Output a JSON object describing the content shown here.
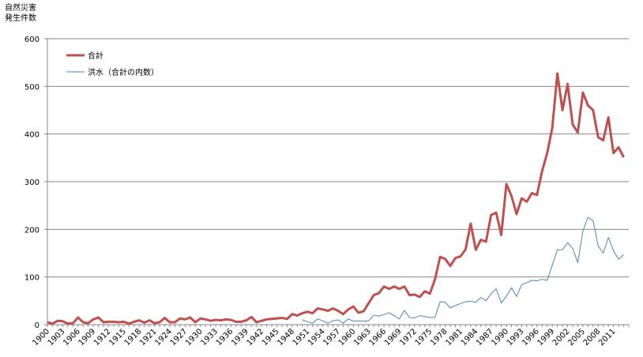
{
  "chart_data": {
    "type": "line",
    "title": "",
    "ylabel": [
      "自然災害",
      "発生件数"
    ],
    "xlabel": "",
    "ylim": [
      0,
      600
    ],
    "yticks": [
      0,
      100,
      200,
      300,
      400,
      500,
      600
    ],
    "xticks": [
      1900,
      1903,
      1906,
      1909,
      1912,
      1915,
      1918,
      1921,
      1924,
      1927,
      1930,
      1933,
      1936,
      1939,
      1942,
      1945,
      1948,
      1951,
      1954,
      1957,
      1960,
      1963,
      1966,
      1969,
      1972,
      1975,
      1978,
      1981,
      1984,
      1987,
      1990,
      1993,
      1996,
      1999,
      2002,
      2005,
      2008,
      2011
    ],
    "grid": "horizontal",
    "legend_position": "top-left",
    "series": [
      {
        "name": "合計",
        "color": "#c0504d",
        "x": [
          1900,
          1901,
          1902,
          1903,
          1904,
          1905,
          1906,
          1907,
          1908,
          1909,
          1910,
          1911,
          1912,
          1913,
          1914,
          1915,
          1916,
          1917,
          1918,
          1919,
          1920,
          1921,
          1922,
          1923,
          1924,
          1925,
          1926,
          1927,
          1928,
          1929,
          1930,
          1931,
          1932,
          1933,
          1934,
          1935,
          1936,
          1937,
          1938,
          1939,
          1940,
          1941,
          1942,
          1943,
          1944,
          1945,
          1946,
          1947,
          1948,
          1949,
          1950,
          1951,
          1952,
          1953,
          1954,
          1955,
          1956,
          1957,
          1958,
          1959,
          1960,
          1961,
          1962,
          1963,
          1964,
          1965,
          1966,
          1967,
          1968,
          1969,
          1970,
          1971,
          1972,
          1973,
          1974,
          1975,
          1976,
          1977,
          1978,
          1979,
          1980,
          1981,
          1982,
          1983,
          1984,
          1985,
          1986,
          1987,
          1988,
          1989,
          1990,
          1991,
          1992,
          1993,
          1994,
          1995,
          1996,
          1997,
          1998,
          1999,
          2000,
          2001,
          2002,
          2003,
          2004,
          2005,
          2006,
          2007,
          2008,
          2009,
          2010,
          2011,
          2012,
          2013
        ],
        "values": [
          5,
          2,
          8,
          7,
          2,
          3,
          15,
          5,
          3,
          11,
          15,
          5,
          6,
          6,
          5,
          6,
          2,
          6,
          9,
          4,
          9,
          3,
          5,
          14,
          5,
          5,
          13,
          11,
          15,
          5,
          13,
          11,
          8,
          10,
          9,
          11,
          10,
          6,
          6,
          9,
          16,
          5,
          8,
          11,
          12,
          13,
          14,
          12,
          22,
          19,
          24,
          27,
          24,
          34,
          32,
          29,
          34,
          29,
          22,
          32,
          38,
          25,
          28,
          45,
          62,
          66,
          80,
          75,
          80,
          75,
          80,
          62,
          63,
          58,
          70,
          65,
          95,
          142,
          138,
          123,
          140,
          143,
          158,
          212,
          157,
          178,
          174,
          230,
          235,
          188,
          295,
          270,
          232,
          265,
          258,
          276,
          272,
          322,
          360,
          413,
          527,
          450,
          505,
          420,
          403,
          487,
          460,
          450,
          393,
          387,
          435,
          360,
          372,
          351
        ]
      },
      {
        "name": "洪水（合計の内数）",
        "color": "#4f81bd",
        "x": [
          1950,
          1951,
          1952,
          1953,
          1954,
          1955,
          1956,
          1957,
          1958,
          1959,
          1960,
          1961,
          1962,
          1963,
          1964,
          1965,
          1966,
          1967,
          1968,
          1969,
          1970,
          1971,
          1972,
          1973,
          1974,
          1975,
          1976,
          1977,
          1978,
          1979,
          1980,
          1981,
          1982,
          1983,
          1984,
          1985,
          1986,
          1987,
          1988,
          1989,
          1990,
          1991,
          1992,
          1993,
          1994,
          1995,
          1996,
          1997,
          1998,
          1999,
          2000,
          2001,
          2002,
          2003,
          2004,
          2005,
          2006,
          2007,
          2008,
          2009,
          2010,
          2011,
          2012,
          2013
        ],
        "values": [
          10,
          6,
          3,
          12,
          8,
          3,
          8,
          10,
          3,
          12,
          7,
          8,
          7,
          8,
          20,
          18,
          21,
          25,
          19,
          12,
          30,
          15,
          14,
          19,
          17,
          15,
          15,
          48,
          47,
          35,
          40,
          44,
          48,
          49,
          47,
          57,
          50,
          65,
          75,
          45,
          60,
          77,
          59,
          84,
          88,
          93,
          92,
          95,
          93,
          125,
          157,
          157,
          172,
          160,
          130,
          196,
          225,
          218,
          165,
          150,
          183,
          155,
          137,
          147
        ]
      }
    ]
  }
}
